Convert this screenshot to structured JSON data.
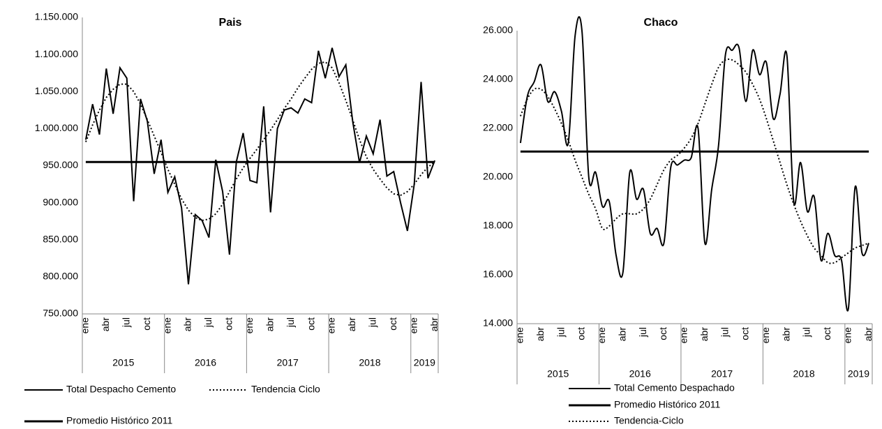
{
  "chart_data": [
    {
      "type": "line",
      "title": "Pais",
      "smooth": false,
      "categories": [
        "ene",
        null,
        null,
        "abr",
        null,
        null,
        "jul",
        null,
        null,
        "oct",
        null,
        null,
        "ene",
        null,
        null,
        "abr",
        null,
        null,
        "jul",
        null,
        null,
        "oct",
        null,
        null,
        "ene",
        null,
        null,
        "abr",
        null,
        null,
        "jul",
        null,
        null,
        "oct",
        null,
        null,
        "ene",
        null,
        null,
        "abr",
        null,
        null,
        "jul",
        null,
        null,
        "oct",
        null,
        null,
        "ene",
        null,
        null,
        "abr"
      ],
      "x_groups": [
        "2015",
        "2016",
        "2017",
        "2018",
        "2019"
      ],
      "ylim": [
        750000,
        1150000
      ],
      "yticks": [
        {
          "value": 750000,
          "label": "750.000"
        },
        {
          "value": 800000,
          "label": "800.000"
        },
        {
          "value": 850000,
          "label": "850.000"
        },
        {
          "value": 900000,
          "label": "900.000"
        },
        {
          "value": 950000,
          "label": "950.000"
        },
        {
          "value": 1000000,
          "label": "1.000.000"
        },
        {
          "value": 1050000,
          "label": "1.050.000"
        },
        {
          "value": 1100000,
          "label": "1.100.000"
        },
        {
          "value": 1150000,
          "label": "1.150.000"
        }
      ],
      "legend": "bottom",
      "series": [
        {
          "name": "Total Despacho Cemento",
          "color": "#000000",
          "style": "solid",
          "line_width": 2,
          "values": [
            985000,
            1033000,
            992000,
            1081000,
            1020000,
            1082000,
            1068000,
            902000,
            1040000,
            1010000,
            939000,
            985000,
            914000,
            935000,
            893000,
            790000,
            884000,
            876000,
            853000,
            958000,
            915000,
            830000,
            955000,
            994000,
            930000,
            927000,
            1030000,
            887000,
            1000000,
            1025000,
            1028000,
            1021000,
            1040000,
            1035000,
            1105000,
            1068000,
            1109000,
            1070000,
            1086000,
            1010000,
            954000,
            990000,
            966000,
            1012000,
            936000,
            942000,
            900000,
            862000,
            925000,
            1063000,
            933000,
            957000
          ]
        },
        {
          "name": "Tendencia Ciclo",
          "color": "#000000",
          "style": "dotted",
          "line_width": 2,
          "values": [
            982000,
            1005000,
            1025000,
            1042000,
            1053000,
            1060000,
            1060000,
            1050000,
            1033000,
            1012000,
            990000,
            968000,
            945000,
            925000,
            905000,
            890000,
            880000,
            876000,
            878000,
            885000,
            898000,
            915000,
            932000,
            947000,
            960000,
            972000,
            985000,
            998000,
            1012000,
            1027000,
            1040000,
            1055000,
            1068000,
            1080000,
            1088000,
            1090000,
            1082000,
            1062000,
            1038000,
            1012000,
            985000,
            962000,
            945000,
            932000,
            920000,
            912000,
            910000,
            915000,
            925000,
            938000,
            948000,
            955000
          ]
        },
        {
          "name": "Promedio Histórico 2011",
          "color": "#000000",
          "style": "solid",
          "line_width": 3,
          "values": [
            955000,
            955000,
            955000,
            955000,
            955000,
            955000,
            955000,
            955000,
            955000,
            955000,
            955000,
            955000,
            955000,
            955000,
            955000,
            955000,
            955000,
            955000,
            955000,
            955000,
            955000,
            955000,
            955000,
            955000,
            955000,
            955000,
            955000,
            955000,
            955000,
            955000,
            955000,
            955000,
            955000,
            955000,
            955000,
            955000,
            955000,
            955000,
            955000,
            955000,
            955000,
            955000,
            955000,
            955000,
            955000,
            955000,
            955000,
            955000,
            955000,
            955000,
            955000,
            955000
          ]
        }
      ]
    },
    {
      "type": "line",
      "title": "Chaco",
      "smooth": true,
      "categories": [
        "ene",
        null,
        null,
        "abr",
        null,
        null,
        "jul",
        null,
        null,
        "oct",
        null,
        null,
        "ene",
        null,
        null,
        "abr",
        null,
        null,
        "jul",
        null,
        null,
        "oct",
        null,
        null,
        "ene",
        null,
        null,
        "abr",
        null,
        null,
        "jul",
        null,
        null,
        "oct",
        null,
        null,
        "ene",
        null,
        null,
        "abr",
        null,
        null,
        "jul",
        null,
        null,
        "oct",
        null,
        null,
        "ene",
        null,
        null,
        "abr"
      ],
      "x_groups": [
        "2015",
        "2016",
        "2017",
        "2018",
        "2019"
      ],
      "ylim": [
        14000,
        26000
      ],
      "yticks": [
        {
          "value": 14000,
          "label": "14.000"
        },
        {
          "value": 16000,
          "label": "16.000"
        },
        {
          "value": 18000,
          "label": "18.000"
        },
        {
          "value": 20000,
          "label": "20.000"
        },
        {
          "value": 22000,
          "label": "22.000"
        },
        {
          "value": 24000,
          "label": "24.000"
        },
        {
          "value": 26000,
          "label": "26.000"
        }
      ],
      "legend": "bottom",
      "series": [
        {
          "name": "Total Cemento Despachado",
          "color": "#000000",
          "style": "solid",
          "line_width": 2,
          "values": [
            21400,
            23300,
            23900,
            24600,
            23100,
            23500,
            22700,
            21400,
            25800,
            26000,
            20000,
            20200,
            18800,
            19000,
            16800,
            16100,
            20200,
            19100,
            19500,
            17700,
            17900,
            17300,
            20400,
            20500,
            20700,
            20800,
            22000,
            17300,
            19500,
            21300,
            25000,
            25200,
            25300,
            23100,
            25200,
            24200,
            24700,
            22400,
            23400,
            25000,
            19000,
            20600,
            18600,
            19200,
            16600,
            17700,
            16800,
            16600,
            14600,
            19600,
            16900,
            17300
          ]
        },
        {
          "name": "Promedio Histórico 2011",
          "color": "#000000",
          "style": "solid",
          "line_width": 3,
          "values": [
            21050,
            21050,
            21050,
            21050,
            21050,
            21050,
            21050,
            21050,
            21050,
            21050,
            21050,
            21050,
            21050,
            21050,
            21050,
            21050,
            21050,
            21050,
            21050,
            21050,
            21050,
            21050,
            21050,
            21050,
            21050,
            21050,
            21050,
            21050,
            21050,
            21050,
            21050,
            21050,
            21050,
            21050,
            21050,
            21050,
            21050,
            21050,
            21050,
            21050,
            21050,
            21050,
            21050,
            21050,
            21050,
            21050,
            21050,
            21050,
            21050,
            21050,
            21050,
            21050
          ]
        },
        {
          "name": "Tendencia-Ciclo",
          "color": "#000000",
          "style": "dotted",
          "line_width": 2,
          "values": [
            22500,
            23200,
            23600,
            23600,
            23300,
            22800,
            22200,
            21500,
            20700,
            20000,
            19300,
            18700,
            17900,
            18000,
            18300,
            18500,
            18500,
            18500,
            18700,
            19100,
            19700,
            20300,
            20700,
            20900,
            21200,
            21600,
            22200,
            23000,
            23800,
            24500,
            24800,
            24800,
            24600,
            24300,
            23800,
            23200,
            22400,
            21500,
            20600,
            19700,
            18900,
            18200,
            17600,
            17100,
            16800,
            16500,
            16500,
            16700,
            16900,
            17100,
            17200,
            17300
          ]
        }
      ]
    }
  ]
}
